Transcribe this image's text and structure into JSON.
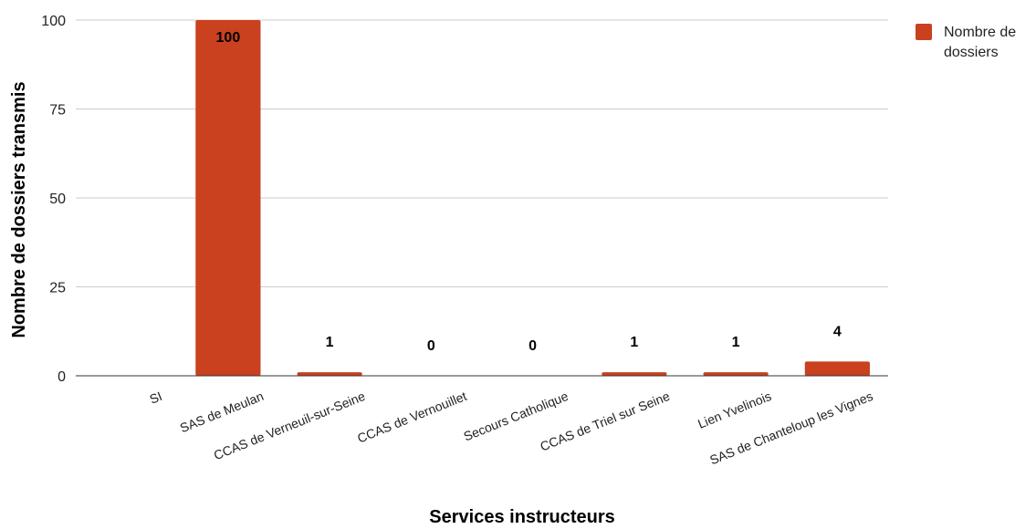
{
  "chart_data": {
    "type": "bar",
    "categories": [
      "SI",
      "SAS de Meulan",
      "CCAS de Verneuil-sur-Seine",
      "CCAS de Vernouillet",
      "Secours Catholique",
      "CCAS de Triel sur Seine",
      "Lien Yvelinois",
      "SAS de Chanteloup les Vignes"
    ],
    "series": [
      {
        "name": "Nombre de dossiers",
        "values": [
          null,
          100,
          1,
          0,
          0,
          1,
          1,
          4
        ],
        "labels": [
          "",
          "100",
          "1",
          "0",
          "0",
          "1",
          "1",
          "4"
        ],
        "color": "#c9411f"
      }
    ],
    "legend": {
      "position": "top-right",
      "lines": [
        "Nombre de",
        "dossiers"
      ]
    },
    "xlabel": "Services instructeurs",
    "ylabel": "Nombre de dossiers transmis",
    "ylim": [
      0,
      100
    ],
    "yticks": [
      0,
      25,
      50,
      75,
      100
    ],
    "ytick_labels": [
      "0",
      "25",
      "50",
      "75",
      "100"
    ],
    "grid": true
  }
}
